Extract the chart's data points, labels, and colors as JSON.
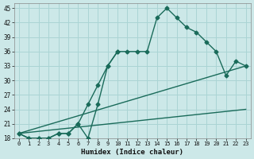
{
  "xlabel": "Humidex (Indice chaleur)",
  "background_color": "#cce8e8",
  "grid_color": "#aad4d4",
  "line_color": "#1a6b5a",
  "xlim": [
    -0.5,
    23.5
  ],
  "ylim": [
    18,
    46
  ],
  "xticks": [
    0,
    1,
    2,
    3,
    4,
    5,
    6,
    7,
    8,
    9,
    10,
    11,
    12,
    13,
    14,
    15,
    16,
    17,
    18,
    19,
    20,
    21,
    22,
    23
  ],
  "yticks": [
    18,
    21,
    24,
    27,
    30,
    33,
    36,
    39,
    42,
    45
  ],
  "line1_x": [
    0,
    1,
    2,
    3,
    4,
    5,
    6,
    7,
    8,
    9,
    10,
    11,
    12,
    13,
    14,
    15,
    16,
    17,
    18,
    19,
    20,
    21,
    22,
    23
  ],
  "line1_y": [
    19,
    18,
    18,
    18,
    19,
    19,
    21,
    18,
    25,
    33,
    36,
    36,
    36,
    36,
    43,
    45,
    43,
    41,
    40,
    38,
    36,
    31,
    34,
    33
  ],
  "line2_x": [
    0,
    1,
    2,
    3,
    4,
    5,
    6,
    7,
    8,
    9,
    10
  ],
  "line2_y": [
    19,
    18,
    18,
    18,
    19,
    19,
    21,
    25,
    29,
    33,
    36
  ],
  "line3_x": [
    0,
    23
  ],
  "line3_y": [
    19,
    33
  ],
  "line4_x": [
    0,
    23
  ],
  "line4_y": [
    19,
    24
  ],
  "marker_size": 2.5,
  "linewidth": 1.0
}
